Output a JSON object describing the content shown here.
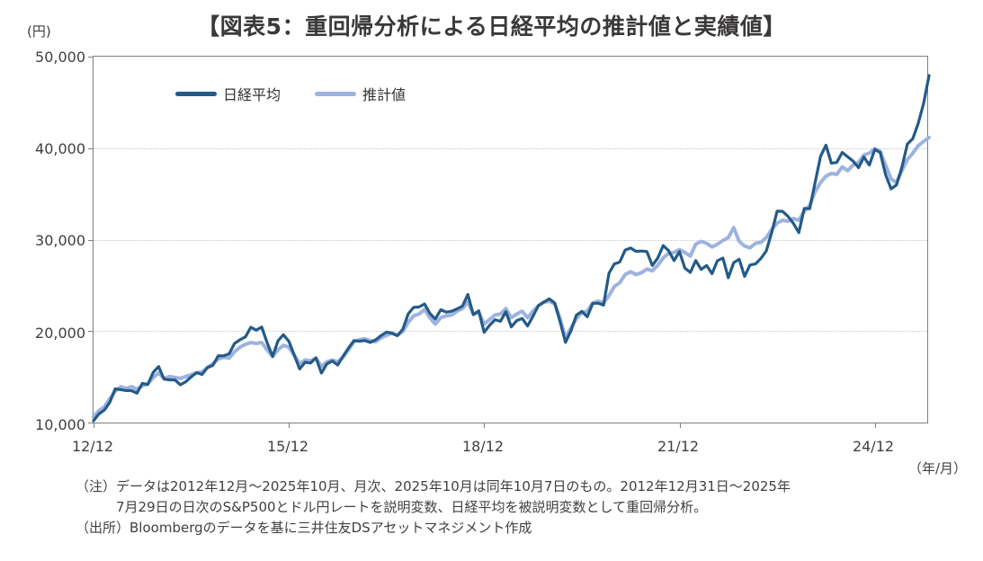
{
  "title": "【図表5：重回帰分析による日経平均の推計値と実績値】",
  "y_axis": {
    "unit_label": "(円)",
    "ticks": [
      "50,000",
      "40,000",
      "30,000",
      "20,000",
      "10,000"
    ]
  },
  "x_axis": {
    "unit_label": "（年/月）",
    "ticks": [
      "12/12",
      "15/12",
      "18/12",
      "21/12",
      "24/12"
    ]
  },
  "legend": {
    "items": [
      {
        "label": "日経平均",
        "color": "#235a88"
      },
      {
        "label": "推計値",
        "color": "#9db3df"
      }
    ]
  },
  "notes": {
    "note_label": "（注）",
    "note_line1": "データは2012年12月～2025年10月、月次、2025年10月は同年10月7日のもの。2012年12月31日～2025年",
    "note_line2": "7月29日の日次のS&P500とドル円レートを説明変数、日経平均を被説明変数として重回帰分析。",
    "source_label": "（出所）",
    "source_text": "Bloombergのデータを基に三井住友DSアセットマネジメント作成"
  },
  "chart_data": {
    "type": "line",
    "title": "【図表5：重回帰分析による日経平均の推計値と実績値】",
    "ylabel": "(円)",
    "xlabel": "（年/月）",
    "ylim": [
      10000,
      50000
    ],
    "grid": "horizontal-dotted",
    "legend_position": "top-left-inside",
    "frequency": "monthly",
    "x_start": "2012-12",
    "x_end": "2025-10",
    "xtick_labels": [
      "12/12",
      "15/12",
      "18/12",
      "21/12",
      "24/12"
    ],
    "xtick_month_index": [
      0,
      36,
      72,
      108,
      144
    ],
    "ytick_values": [
      10000,
      20000,
      30000,
      40000,
      50000
    ],
    "series": [
      {
        "name": "日経平均",
        "color": "#235a88",
        "stroke_width": 3.2,
        "values": [
          10395,
          11139,
          11559,
          12398,
          13861,
          13775,
          13677,
          13668,
          13389,
          14456,
          14328,
          15662,
          16291,
          14915,
          14841,
          14828,
          14304,
          14632,
          15162,
          15621,
          15425,
          16174,
          16414,
          17460,
          17451,
          17674,
          18798,
          19207,
          19520,
          20563,
          20236,
          20585,
          18890,
          17388,
          19083,
          19747,
          19034,
          17518,
          16027,
          16759,
          16666,
          17235,
          15576,
          16569,
          16887,
          16450,
          17425,
          18308,
          19114,
          19041,
          19119,
          18909,
          19197,
          19651,
          20033,
          19925,
          19646,
          20356,
          22012,
          22725,
          22765,
          23098,
          22068,
          21454,
          22468,
          22202,
          22304,
          22553,
          22865,
          24120,
          21920,
          22351,
          20015,
          20773,
          21385,
          21206,
          22259,
          20601,
          21276,
          21522,
          20704,
          21756,
          22927,
          23294,
          23657,
          23205,
          21143,
          18917,
          20194,
          21878,
          22288,
          21710,
          23140,
          23185,
          22977,
          26434,
          27444,
          27663,
          28966,
          29179,
          28813,
          28860,
          28792,
          27284,
          28090,
          29453,
          28893,
          27822,
          28792,
          27002,
          26527,
          27821,
          26848,
          27280,
          26393,
          27802,
          28092,
          25937,
          27587,
          27969,
          26095,
          27327,
          27446,
          28041,
          28856,
          30888,
          33189,
          33172,
          32619,
          31858,
          30859,
          33487,
          33464,
          36287,
          39166,
          40369,
          38406,
          38488,
          39583,
          39102,
          38648,
          37920,
          39081,
          38208,
          39895,
          39572,
          37156,
          35618,
          36045,
          37965,
          40487,
          41070,
          42718,
          44932,
          47945
        ]
      },
      {
        "name": "推計値",
        "color": "#9db3df",
        "stroke_width": 4,
        "values": [
          10800,
          11500,
          11900,
          12800,
          13600,
          14100,
          13900,
          14100,
          13800,
          14200,
          14400,
          15100,
          15600,
          15000,
          15200,
          15100,
          15000,
          15200,
          15400,
          15600,
          15700,
          16200,
          16600,
          17100,
          17300,
          17200,
          17900,
          18400,
          18700,
          18900,
          18800,
          18900,
          18100,
          17400,
          18100,
          18600,
          18400,
          17500,
          16600,
          17000,
          16900,
          17200,
          16300,
          16800,
          17000,
          16800,
          17300,
          18100,
          19000,
          19200,
          19300,
          19100,
          19000,
          19400,
          19700,
          19900,
          19700,
          20100,
          21100,
          21800,
          22000,
          22500,
          21600,
          20900,
          21600,
          21800,
          21900,
          22300,
          22600,
          23300,
          22000,
          22200,
          20900,
          21400,
          21900,
          22000,
          22600,
          21600,
          22000,
          22300,
          21600,
          22300,
          22900,
          23300,
          23400,
          23100,
          21500,
          19400,
          20500,
          21500,
          22200,
          22300,
          23200,
          23400,
          23200,
          24000,
          25000,
          25400,
          26300,
          26600,
          26300,
          26500,
          26900,
          26700,
          27300,
          28100,
          28600,
          28700,
          29000,
          28700,
          28300,
          29600,
          29900,
          29700,
          29300,
          29600,
          30000,
          30300,
          31400,
          29900,
          29400,
          29200,
          29700,
          29800,
          30300,
          31200,
          31900,
          32200,
          32100,
          32400,
          32200,
          33200,
          33800,
          35300,
          36300,
          37000,
          37300,
          37200,
          38000,
          37600,
          38200,
          38500,
          39300,
          39500,
          40000,
          39700,
          38200,
          36700,
          36300,
          37600,
          38800,
          39500,
          40300,
          40800,
          41200
        ]
      }
    ]
  }
}
